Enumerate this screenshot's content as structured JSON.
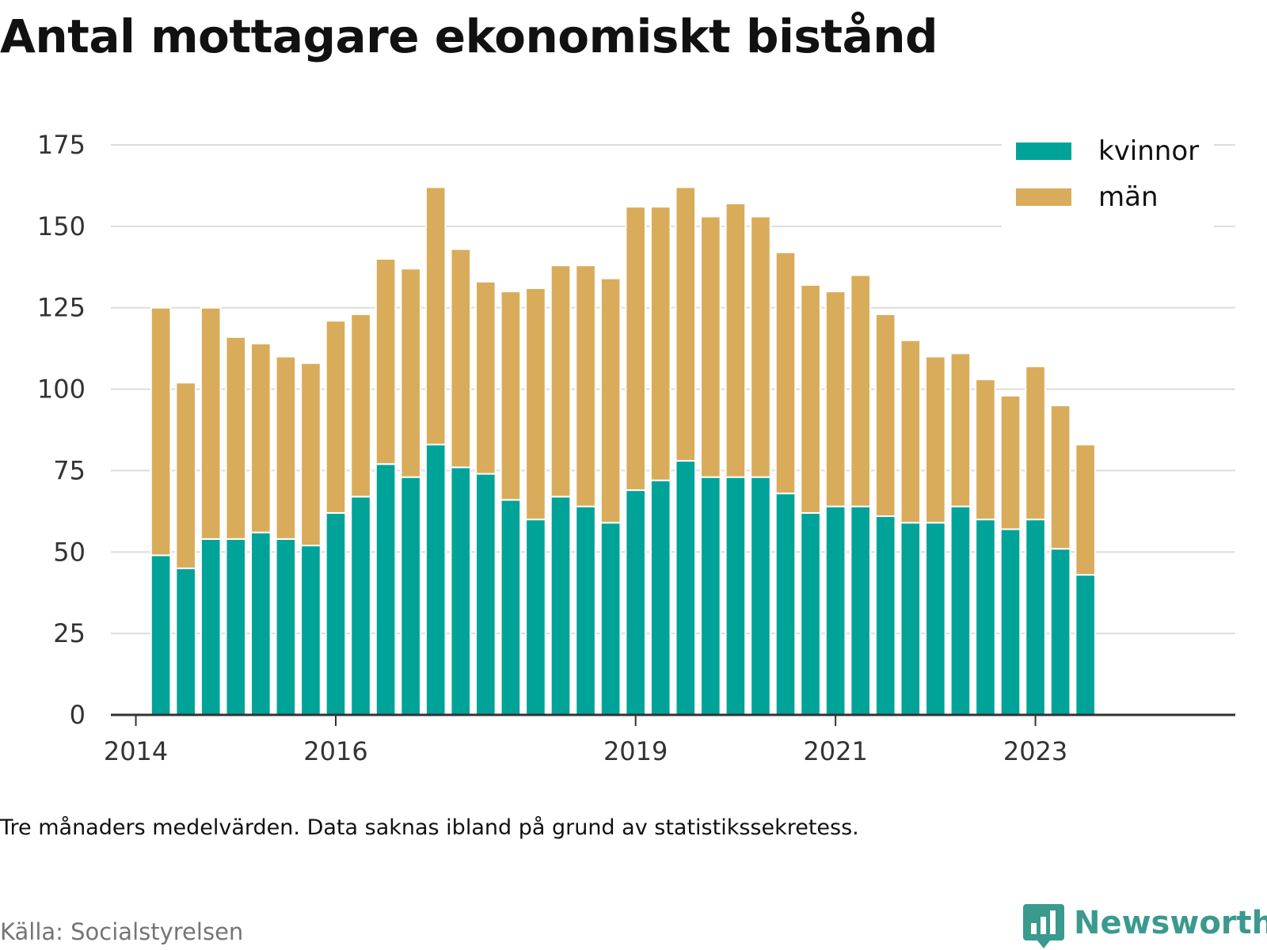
{
  "title": "Antal mottagare ekonomiskt bistånd",
  "note": "Tre månaders medelvärden. Data saknas ibland på grund av statistikssekretess.",
  "source": "Källa: Socialstyrelsen",
  "brand": {
    "name": "Newsworthy",
    "icon": "chat-bar-chart-icon",
    "color": "#3a9a8e"
  },
  "colors": {
    "kvinnor": "#00a398",
    "man": "#d9ac5b",
    "grid": "#dddddd",
    "axis": "#333333"
  },
  "chart_data": {
    "type": "bar",
    "stacked": true,
    "title": "Antal mottagare ekonomiskt bistånd",
    "xlabel": "",
    "ylabel": "",
    "ylim": [
      0,
      175
    ],
    "yticks": [
      0,
      25,
      50,
      75,
      100,
      125,
      150,
      175
    ],
    "xlim": [
      2013.75,
      2025.0
    ],
    "xticks": [
      2014,
      2016,
      2019,
      2021,
      2023
    ],
    "grid": true,
    "legend_position": "top-right",
    "x": [
      2014.25,
      2014.5,
      2014.75,
      2015.0,
      2015.25,
      2015.5,
      2015.75,
      2016.0,
      2016.25,
      2016.5,
      2016.75,
      2017.0,
      2017.25,
      2017.5,
      2017.75,
      2018.0,
      2018.25,
      2018.5,
      2018.75,
      2019.0,
      2019.25,
      2019.5,
      2019.75,
      2020.0,
      2020.25,
      2020.5,
      2020.75,
      2021.0,
      2021.25,
      2021.5,
      2021.75,
      2022.0,
      2022.25,
      2022.5,
      2022.75,
      2023.0,
      2023.25,
      2023.5
    ],
    "series": [
      {
        "name": "kvinnor",
        "values": [
          49,
          45,
          54,
          54,
          56,
          54,
          52,
          62,
          67,
          77,
          73,
          83,
          76,
          74,
          66,
          60,
          67,
          64,
          59,
          69,
          72,
          78,
          73,
          73,
          73,
          68,
          62,
          64,
          64,
          61,
          59,
          59,
          64,
          60,
          57,
          60,
          51,
          43
        ]
      },
      {
        "name": "män",
        "values": [
          76,
          57,
          71,
          62,
          58,
          56,
          56,
          59,
          56,
          63,
          64,
          79,
          67,
          59,
          64,
          71,
          71,
          74,
          75,
          87,
          84,
          84,
          80,
          84,
          80,
          74,
          70,
          66,
          71,
          62,
          56,
          51,
          47,
          43,
          41,
          47,
          44,
          40
        ]
      }
    ]
  }
}
